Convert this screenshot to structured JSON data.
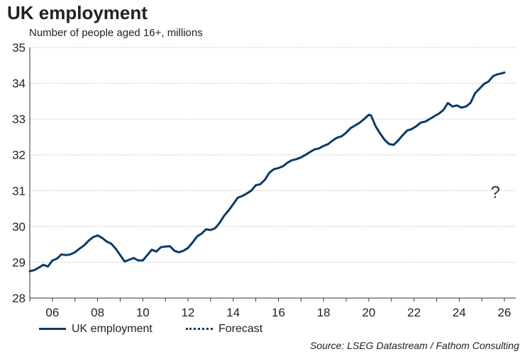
{
  "chart_data": {
    "type": "line",
    "title": "UK employment",
    "subtitle": "Number of people aged 16+, millions",
    "xlim": [
      2005.0,
      2026.5
    ],
    "ylim": [
      28,
      35
    ],
    "yticks": [
      28,
      29,
      30,
      31,
      32,
      33,
      34,
      35
    ],
    "xticks": [
      {
        "value": 2006,
        "label": "06"
      },
      {
        "value": 2008,
        "label": "08"
      },
      {
        "value": 2010,
        "label": "10"
      },
      {
        "value": 2012,
        "label": "12"
      },
      {
        "value": 2014,
        "label": "14"
      },
      {
        "value": 2016,
        "label": "16"
      },
      {
        "value": 2018,
        "label": "18"
      },
      {
        "value": 2020,
        "label": "20"
      },
      {
        "value": 2022,
        "label": "22"
      },
      {
        "value": 2024,
        "label": "24"
      },
      {
        "value": 2026,
        "label": "26"
      }
    ],
    "grid": "horizontal",
    "annotation": {
      "text": "?",
      "x": 2025.6,
      "y": 31.0
    },
    "legend": {
      "placement": "bottom-left",
      "entries": [
        "UK employment",
        "Forecast"
      ]
    },
    "source": "Source: LSEG Datastream / Fathom Consulting",
    "series": [
      {
        "name": "UK employment",
        "color": "#0d3a63",
        "style": "solid",
        "x": [
          2005.0,
          2005.2,
          2005.4,
          2005.6,
          2005.8,
          2006.0,
          2006.2,
          2006.4,
          2006.6,
          2006.8,
          2007.0,
          2007.2,
          2007.4,
          2007.6,
          2007.8,
          2008.0,
          2008.2,
          2008.4,
          2008.6,
          2008.8,
          2009.0,
          2009.2,
          2009.4,
          2009.6,
          2009.8,
          2010.0,
          2010.2,
          2010.4,
          2010.6,
          2010.8,
          2011.0,
          2011.2,
          2011.4,
          2011.6,
          2011.8,
          2012.0,
          2012.2,
          2012.4,
          2012.6,
          2012.8,
          2013.0,
          2013.2,
          2013.4,
          2013.6,
          2013.8,
          2014.0,
          2014.2,
          2014.4,
          2014.6,
          2014.8,
          2015.0,
          2015.2,
          2015.4,
          2015.6,
          2015.8,
          2016.0,
          2016.2,
          2016.4,
          2016.6,
          2016.8,
          2017.0,
          2017.2,
          2017.4,
          2017.6,
          2017.8,
          2018.0,
          2018.2,
          2018.4,
          2018.6,
          2018.8,
          2019.0,
          2019.2,
          2019.4,
          2019.6,
          2019.8,
          2020.0,
          2020.1,
          2020.3,
          2020.5,
          2020.7,
          2020.9,
          2021.1,
          2021.3,
          2021.5,
          2021.7,
          2021.9,
          2022.1,
          2022.3,
          2022.5,
          2022.7,
          2022.9,
          2023.1,
          2023.3,
          2023.5,
          2023.7,
          2023.9,
          2024.1,
          2024.3,
          2024.5,
          2024.7,
          2024.9,
          2025.1,
          2025.3,
          2025.5,
          2025.7,
          2025.9,
          2026.0
        ],
        "y": [
          28.75,
          28.78,
          28.85,
          28.93,
          28.88,
          29.05,
          29.1,
          29.22,
          29.2,
          29.22,
          29.28,
          29.38,
          29.47,
          29.6,
          29.7,
          29.75,
          29.68,
          29.58,
          29.52,
          29.38,
          29.2,
          29.02,
          29.07,
          29.12,
          29.05,
          29.05,
          29.2,
          29.35,
          29.3,
          29.42,
          29.44,
          29.45,
          29.32,
          29.28,
          29.32,
          29.4,
          29.55,
          29.72,
          29.8,
          29.92,
          29.9,
          29.95,
          30.1,
          30.3,
          30.45,
          30.62,
          30.8,
          30.85,
          30.92,
          31.0,
          31.15,
          31.18,
          31.3,
          31.5,
          31.6,
          31.63,
          31.68,
          31.78,
          31.85,
          31.88,
          31.93,
          32.0,
          32.08,
          32.15,
          32.18,
          32.25,
          32.3,
          32.4,
          32.48,
          32.52,
          32.62,
          32.75,
          32.82,
          32.9,
          33.0,
          33.12,
          33.1,
          32.8,
          32.6,
          32.42,
          32.3,
          32.28,
          32.4,
          32.55,
          32.68,
          32.72,
          32.8,
          32.9,
          32.93,
          33.0,
          33.08,
          33.15,
          33.25,
          33.45,
          33.35,
          33.38,
          33.32,
          33.35,
          33.45,
          33.72,
          33.85,
          33.98,
          34.05,
          34.2,
          34.25,
          34.28,
          34.3
        ]
      },
      {
        "name": "Forecast",
        "color": "#0d3a63",
        "style": "dotted",
        "x": [],
        "y": []
      }
    ]
  }
}
